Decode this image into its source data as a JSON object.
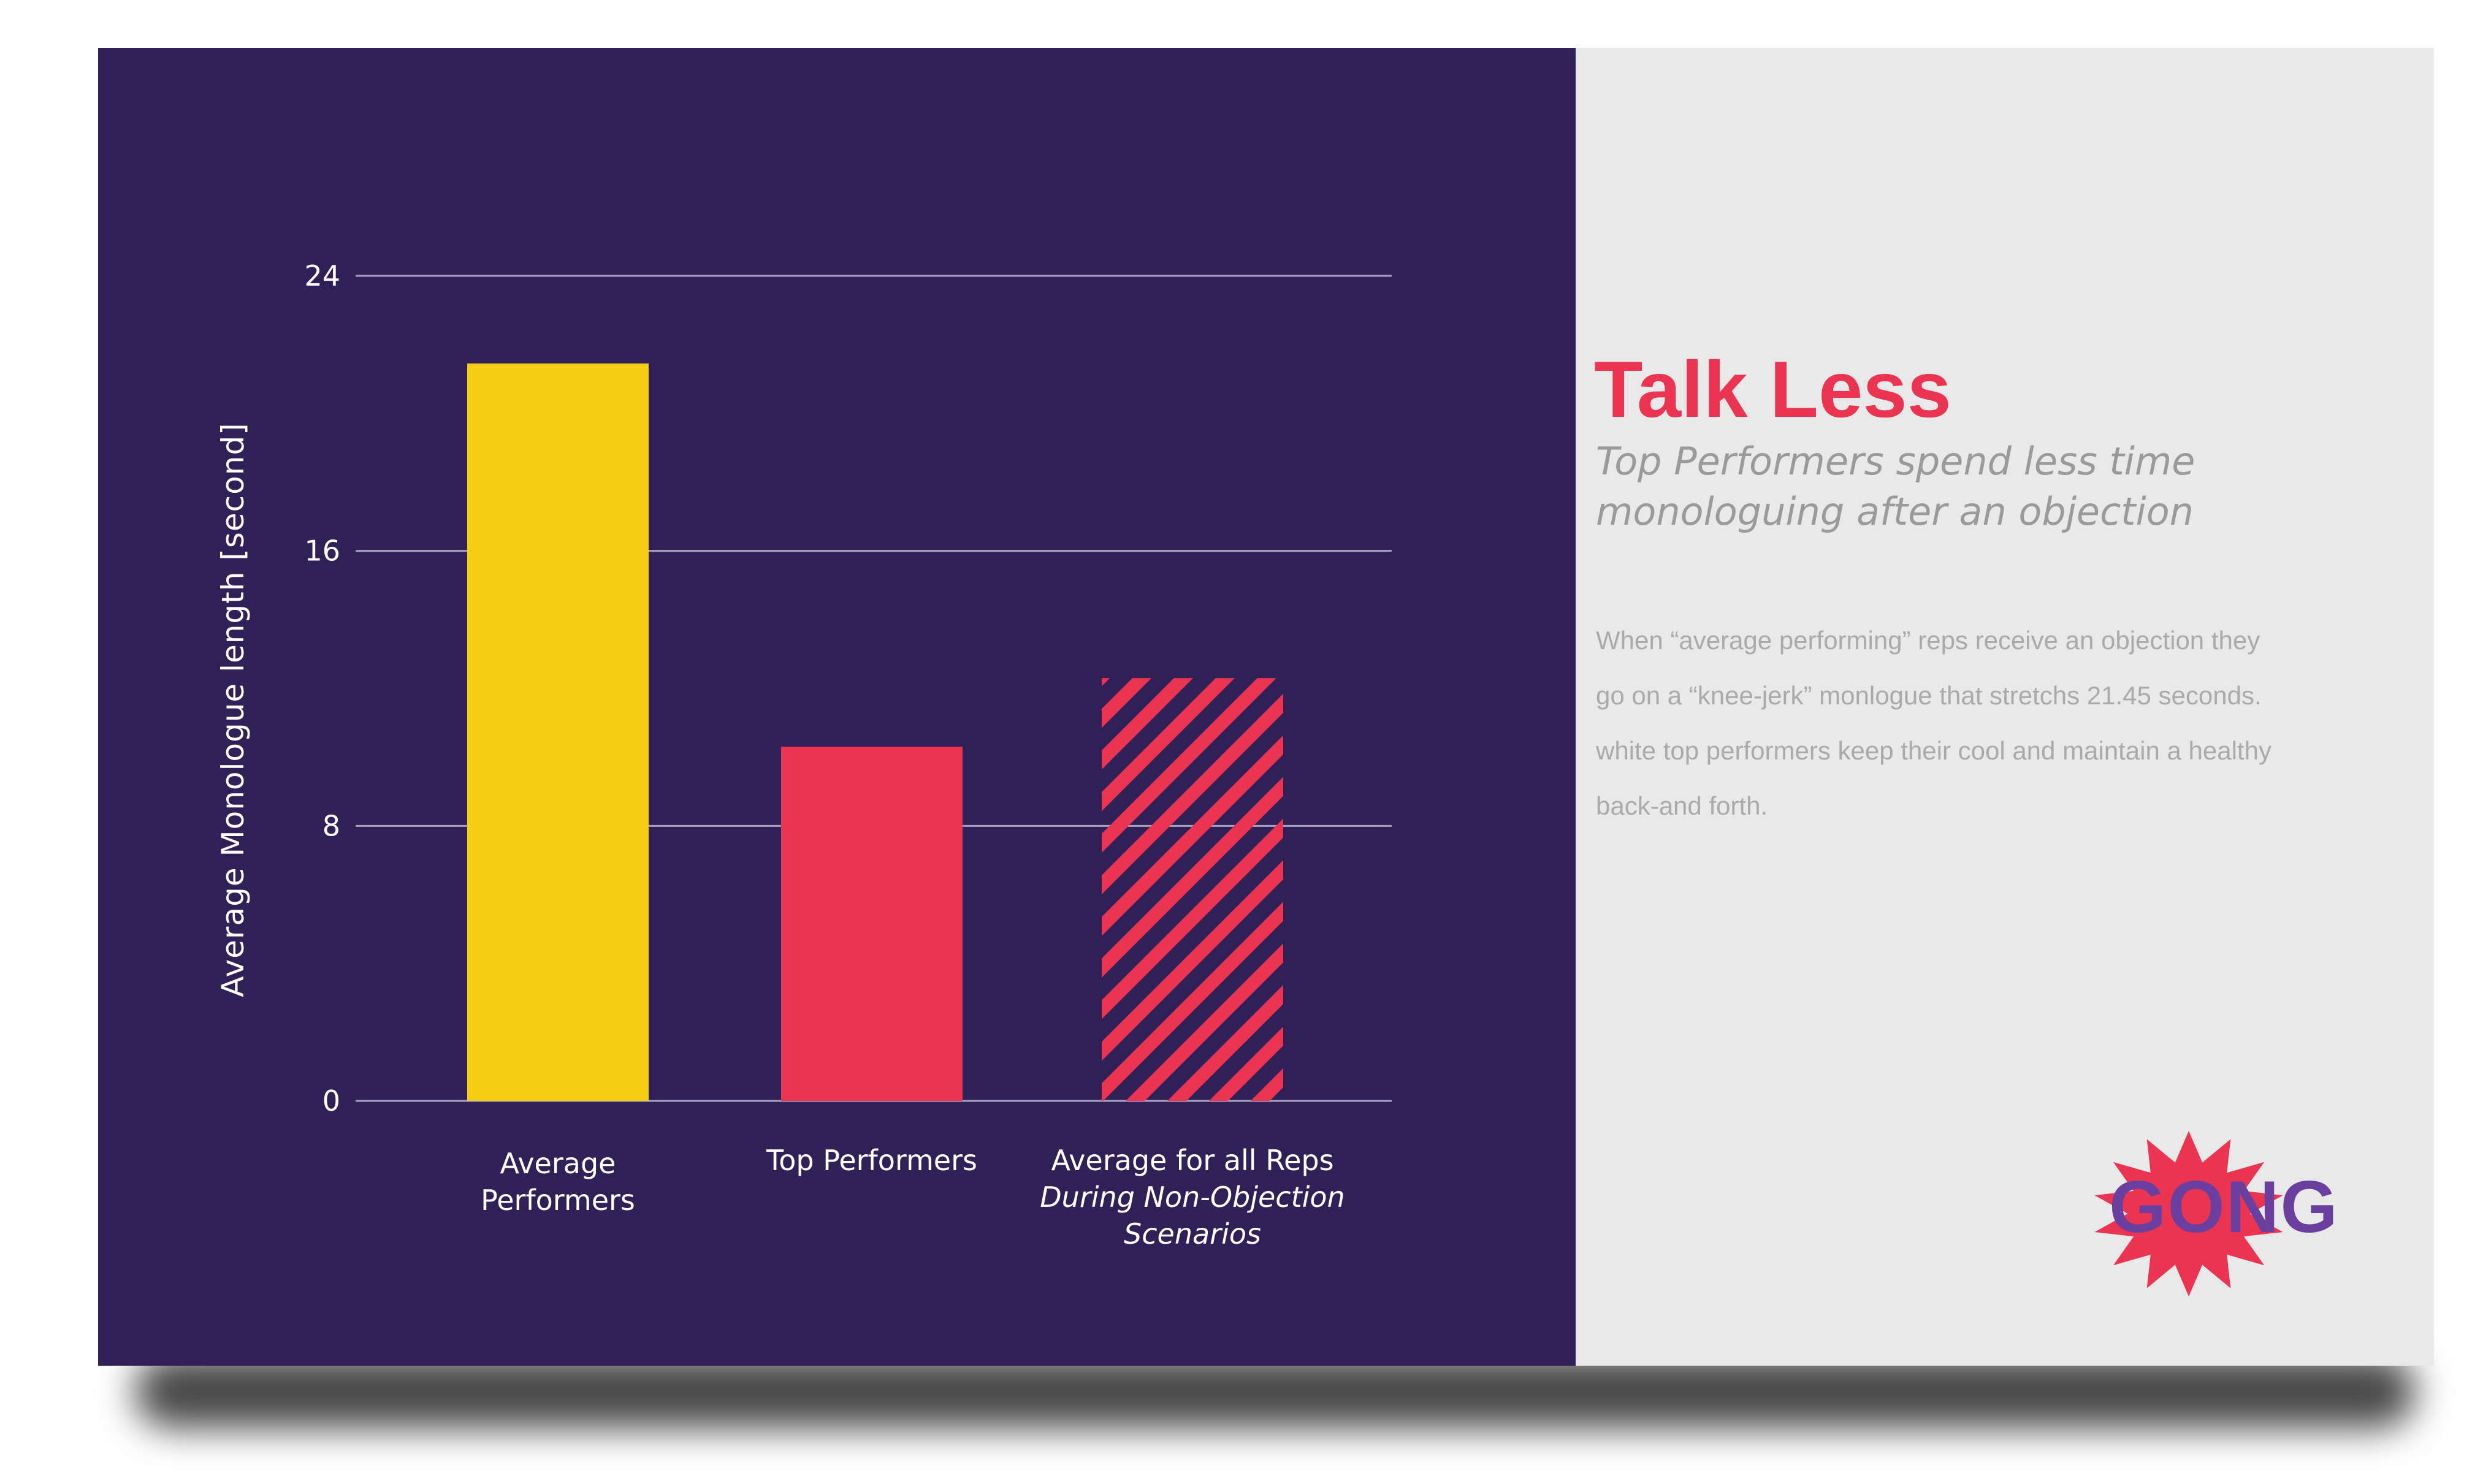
{
  "chart_data": {
    "type": "bar",
    "categories": [
      "Average Performers",
      "Top Performers",
      "Average for all Reps"
    ],
    "category_sublabels": [
      "",
      "",
      "During Non-Objection Scenarios"
    ],
    "values": [
      21.45,
      10.3,
      12.3
    ],
    "ylabel": "Average Monologue length [second]",
    "ylim": [
      0,
      24
    ],
    "yticks": [
      0,
      8,
      16,
      24
    ],
    "grid": true,
    "bar_colors": [
      "#f5cd12",
      "#ea3451",
      "#ea3451"
    ],
    "bar_styles": [
      "solid",
      "solid",
      "hatched"
    ]
  },
  "side": {
    "title": "Talk Less",
    "subtitle": "Top Performers spend less time monologuing after an objection",
    "body": "When “average performing” reps receive an objection they go on a “knee-jerk” monlogue that stretchs 21.45 seconds. white top performers keep their cool and maintain a healthy back-and forth."
  },
  "logo": {
    "text": "GONG",
    "color": "#6a3fa0",
    "burst_color": "#ea3451"
  },
  "colors": {
    "panel_dark": "#2f2157",
    "panel_light": "#e9e9e9",
    "accent": "#ea3451",
    "yellow": "#f5cd12"
  }
}
